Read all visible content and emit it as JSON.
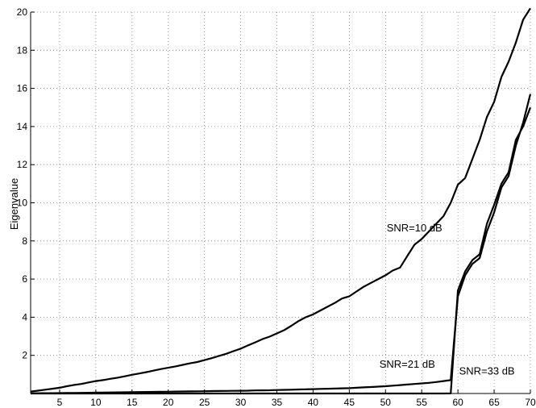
{
  "chart_data": {
    "type": "line",
    "title": "",
    "xlabel": "",
    "ylabel": "Eigenvalue",
    "xlim": [
      1,
      70
    ],
    "ylim": [
      0,
      20
    ],
    "xticks": [
      5,
      10,
      15,
      20,
      25,
      30,
      35,
      40,
      45,
      50,
      55,
      60,
      65,
      70
    ],
    "yticks": [
      2,
      4,
      6,
      8,
      10,
      12,
      14,
      16,
      18,
      20
    ],
    "grid": true,
    "annotations": [
      {
        "text": "SNR=10 dB",
        "x": 54,
        "y": 8.5
      },
      {
        "text": "SNR=21 dB",
        "x": 53,
        "y": 1.35
      },
      {
        "text": "SNR=33 dB",
        "x": 64,
        "y": 1.0
      }
    ],
    "series": [
      {
        "name": "",
        "x": [
          1,
          2,
          3,
          4,
          5,
          6,
          7,
          8,
          9,
          10,
          11,
          12,
          13,
          14,
          15,
          16,
          17,
          18,
          19,
          20,
          21,
          22,
          23,
          24,
          25,
          26,
          27,
          28,
          29,
          30,
          31,
          32,
          33,
          34,
          35,
          36,
          37,
          38,
          39,
          40,
          41,
          42,
          43,
          44,
          45,
          46,
          47,
          48,
          49,
          50,
          51,
          52,
          53,
          54,
          55,
          56,
          57,
          58,
          59,
          60,
          61,
          62,
          63,
          64,
          65,
          66,
          67,
          68,
          69,
          70
        ],
        "values": [
          0.1,
          0.15,
          0.2,
          0.25,
          0.3,
          0.38,
          0.45,
          0.5,
          0.58,
          0.65,
          0.7,
          0.77,
          0.83,
          0.9,
          0.98,
          1.05,
          1.12,
          1.2,
          1.28,
          1.35,
          1.42,
          1.5,
          1.58,
          1.65,
          1.75,
          1.85,
          1.97,
          2.08,
          2.22,
          2.35,
          2.52,
          2.68,
          2.85,
          2.98,
          3.15,
          3.32,
          3.55,
          3.8,
          4.0,
          4.15,
          4.35,
          4.55,
          4.75,
          4.98,
          5.1,
          5.35,
          5.6,
          5.8,
          6.0,
          6.2,
          6.45,
          6.6,
          7.2,
          7.8,
          8.1,
          8.5,
          8.9,
          9.3,
          10.0,
          10.95,
          11.3,
          12.3,
          13.3,
          14.5,
          15.3,
          16.6,
          17.4,
          18.4,
          19.6,
          20.2
        ]
      },
      {
        "name": "",
        "x": [
          1,
          2,
          3,
          4,
          5,
          6,
          7,
          8,
          9,
          10,
          11,
          12,
          13,
          14,
          15,
          16,
          17,
          18,
          19,
          20,
          21,
          22,
          23,
          24,
          25,
          26,
          27,
          28,
          29,
          30,
          31,
          32,
          33,
          34,
          35,
          36,
          37,
          38,
          39,
          40,
          41,
          42,
          43,
          44,
          45,
          46,
          47,
          48,
          49,
          50,
          51,
          52,
          53,
          54,
          55,
          56,
          57,
          58,
          59,
          60,
          61,
          62,
          63,
          64,
          65,
          66,
          67,
          68,
          69,
          70
        ],
        "values": [
          0.01,
          0.012,
          0.015,
          0.018,
          0.02,
          0.025,
          0.03,
          0.035,
          0.04,
          0.045,
          0.05,
          0.055,
          0.06,
          0.065,
          0.07,
          0.075,
          0.08,
          0.085,
          0.09,
          0.095,
          0.1,
          0.105,
          0.11,
          0.115,
          0.12,
          0.125,
          0.13,
          0.135,
          0.14,
          0.145,
          0.15,
          0.16,
          0.165,
          0.17,
          0.18,
          0.19,
          0.2,
          0.21,
          0.22,
          0.23,
          0.24,
          0.25,
          0.26,
          0.27,
          0.28,
          0.3,
          0.32,
          0.34,
          0.36,
          0.38,
          0.41,
          0.44,
          0.47,
          0.5,
          0.53,
          0.56,
          0.6,
          0.65,
          0.7,
          5.1,
          6.2,
          6.8,
          7.1,
          8.5,
          9.5,
          10.8,
          11.4,
          13.0,
          14.2,
          15.7
        ]
      },
      {
        "name": "",
        "x": [
          1,
          2,
          3,
          4,
          5,
          6,
          7,
          8,
          9,
          10,
          11,
          12,
          13,
          14,
          15,
          16,
          17,
          18,
          19,
          20,
          21,
          22,
          23,
          24,
          25,
          26,
          27,
          28,
          29,
          30,
          31,
          32,
          33,
          34,
          35,
          36,
          37,
          38,
          39,
          40,
          41,
          42,
          43,
          44,
          45,
          46,
          47,
          48,
          49,
          50,
          51,
          52,
          53,
          54,
          55,
          56,
          57,
          58,
          59,
          60,
          61,
          62,
          63,
          64,
          65,
          66,
          67,
          68,
          69,
          70
        ],
        "values": [
          0.002,
          0.002,
          0.002,
          0.002,
          0.002,
          0.002,
          0.002,
          0.002,
          0.002,
          0.002,
          0.002,
          0.002,
          0.002,
          0.002,
          0.002,
          0.002,
          0.002,
          0.002,
          0.002,
          0.002,
          0.002,
          0.002,
          0.002,
          0.002,
          0.002,
          0.002,
          0.002,
          0.002,
          0.002,
          0.002,
          0.002,
          0.002,
          0.002,
          0.002,
          0.002,
          0.002,
          0.002,
          0.002,
          0.002,
          0.002,
          0.002,
          0.002,
          0.002,
          0.002,
          0.002,
          0.002,
          0.002,
          0.002,
          0.002,
          0.002,
          0.002,
          0.002,
          0.002,
          0.002,
          0.002,
          0.002,
          0.002,
          0.002,
          0.003,
          5.4,
          6.4,
          7.0,
          7.3,
          8.9,
          9.9,
          11.0,
          11.6,
          13.3,
          14.0,
          15.0
        ]
      }
    ]
  }
}
